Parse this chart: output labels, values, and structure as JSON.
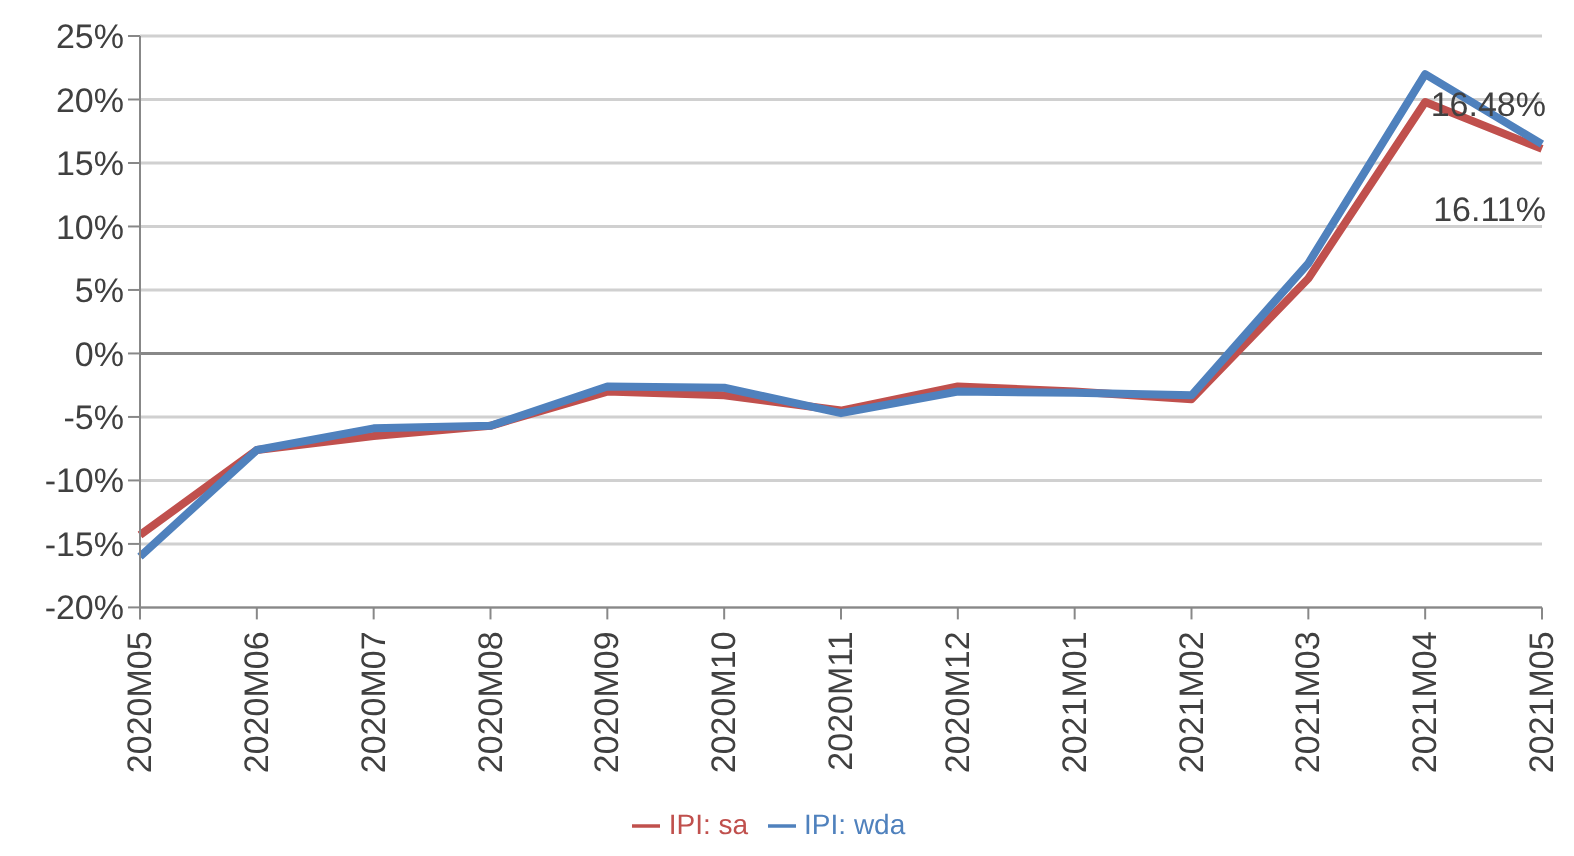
{
  "chart_data": {
    "type": "line",
    "categories": [
      "2020M05",
      "2020M06",
      "2020M07",
      "2020M08",
      "2020M09",
      "2020M10",
      "2020M11",
      "2020M12",
      "2021M01",
      "2021M02",
      "2021M03",
      "2021M04",
      "2021M05"
    ],
    "series": [
      {
        "name": "IPI: sa",
        "color": "#c0504d",
        "values": [
          -14.3,
          -7.6,
          -6.5,
          -5.7,
          -3.0,
          -3.3,
          -4.5,
          -2.6,
          -3.0,
          -3.6,
          5.9,
          19.8,
          16.11
        ],
        "value_labels": [
          null,
          null,
          null,
          null,
          null,
          null,
          null,
          null,
          null,
          null,
          null,
          null,
          "16.11%"
        ]
      },
      {
        "name": "IPI: wda",
        "color": "#4f81bd",
        "values": [
          -16.0,
          -7.6,
          -5.9,
          -5.7,
          -2.6,
          -2.7,
          -4.7,
          -3.0,
          -3.1,
          -3.3,
          7.1,
          22.0,
          16.48
        ],
        "value_labels": [
          null,
          null,
          null,
          null,
          null,
          null,
          null,
          null,
          null,
          null,
          null,
          null,
          "16.48%"
        ]
      }
    ],
    "ylim": [
      -20,
      25
    ],
    "yticks": [
      {
        "value": -20,
        "label": "-20%"
      },
      {
        "value": -15,
        "label": "-15%"
      },
      {
        "value": -10,
        "label": "-10%"
      },
      {
        "value": -5,
        "label": "-5%"
      },
      {
        "value": 0,
        "label": "0%"
      },
      {
        "value": 5,
        "label": "5%"
      },
      {
        "value": 10,
        "label": "10%"
      },
      {
        "value": 15,
        "label": "15%"
      },
      {
        "value": 20,
        "label": "20%"
      },
      {
        "value": 25,
        "label": "25%"
      }
    ],
    "grid": "y",
    "legend": "bottom",
    "marker": "none",
    "line_style": "solid"
  }
}
